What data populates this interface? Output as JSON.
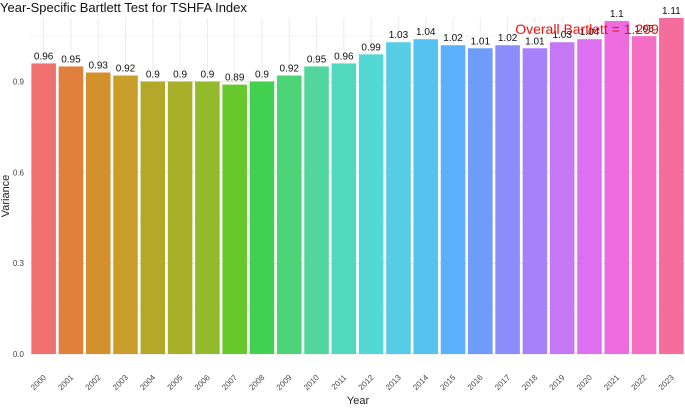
{
  "chart_data": {
    "type": "bar",
    "title": "Year-Specific Bartlett Test for TSHFA Index",
    "xlabel": "Year",
    "ylabel": "Variance",
    "ylim": [
      0,
      1.11
    ],
    "yticks": [
      "0.0",
      "0.3",
      "0.6",
      "0.9"
    ],
    "grid": true,
    "categories": [
      "2000",
      "2001",
      "2002",
      "2003",
      "2004",
      "2005",
      "2006",
      "2007",
      "2008",
      "2009",
      "2010",
      "2011",
      "2012",
      "2013",
      "2014",
      "2015",
      "2016",
      "2017",
      "2018",
      "2019",
      "2020",
      "2021",
      "2022",
      "2023"
    ],
    "values": [
      0.96,
      0.95,
      0.93,
      0.92,
      0.9,
      0.9,
      0.9,
      0.89,
      0.9,
      0.92,
      0.95,
      0.96,
      0.99,
      1.03,
      1.04,
      1.02,
      1.01,
      1.02,
      1.01,
      1.03,
      1.04,
      1.1,
      1.05,
      1.11
    ],
    "labels": [
      "0.96",
      "0.95",
      "0.93",
      "0.92",
      "0.9",
      "0.9",
      "0.9",
      "0.89",
      "0.9",
      "0.92",
      "0.95",
      "0.96",
      "0.99",
      "1.03",
      "1.04",
      "1.02",
      "1.01",
      "1.02",
      "1.01",
      "1.03",
      "1.04",
      "1.1",
      "1.05",
      "1.11"
    ],
    "colors": [
      "#F07070",
      "#E0803C",
      "#D5902E",
      "#C99E2A",
      "#B4A82A",
      "#A8B02A",
      "#92BA2A",
      "#66C82A",
      "#42D050",
      "#4ED478",
      "#50D69E",
      "#52D8BE",
      "#54D8D6",
      "#56CCE6",
      "#56C2F0",
      "#5AB0FA",
      "#6E9CFA",
      "#8C8CFA",
      "#A880FA",
      "#C478F6",
      "#DC70F0",
      "#EE6CE0",
      "#F46CC4",
      "#F66C9C"
    ],
    "annotation": "Overall Bartlett = 1.299",
    "annotation_color": "#EE1111"
  }
}
